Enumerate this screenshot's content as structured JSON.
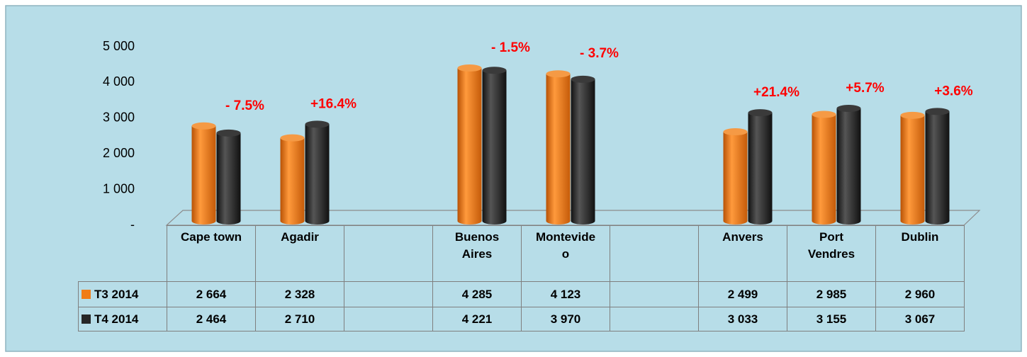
{
  "chart_data": {
    "type": "bar3d",
    "categories": [
      "Cape town",
      "Agadir",
      null,
      "Buenos Aires",
      "Montevideo",
      null,
      "Anvers",
      "Port Vendres",
      "Dublin"
    ],
    "series": [
      {
        "name": "T3 2014",
        "color": "#f07c17",
        "values": [
          2664,
          2328,
          null,
          4285,
          4123,
          null,
          2499,
          2985,
          2960
        ],
        "value_labels": [
          "2 664",
          "2 328",
          null,
          "4 285",
          "4 123",
          null,
          "2 499",
          "2 985",
          "2 960"
        ]
      },
      {
        "name": "T4 2014",
        "color": "#262626",
        "values": [
          2464,
          2710,
          null,
          4221,
          3970,
          null,
          3033,
          3155,
          3067
        ],
        "value_labels": [
          "2 464",
          "2 710",
          null,
          "4 221",
          "3 970",
          null,
          "3 033",
          "3 155",
          "3 067"
        ]
      }
    ],
    "change_labels": [
      "- 7.5%",
      "+16.4%",
      null,
      "- 1.5%",
      "- 3.7%",
      null,
      "+21.4%",
      "+5.7%",
      "+3.6%"
    ],
    "ylim": [
      0,
      5000
    ],
    "yticks": [
      {
        "value": 0,
        "label": "-"
      },
      {
        "value": 1000,
        "label": "1 000"
      },
      {
        "value": 2000,
        "label": "2 000"
      },
      {
        "value": 3000,
        "label": "3 000"
      },
      {
        "value": 4000,
        "label": "4 000"
      },
      {
        "value": 5000,
        "label": "5 000"
      }
    ]
  }
}
